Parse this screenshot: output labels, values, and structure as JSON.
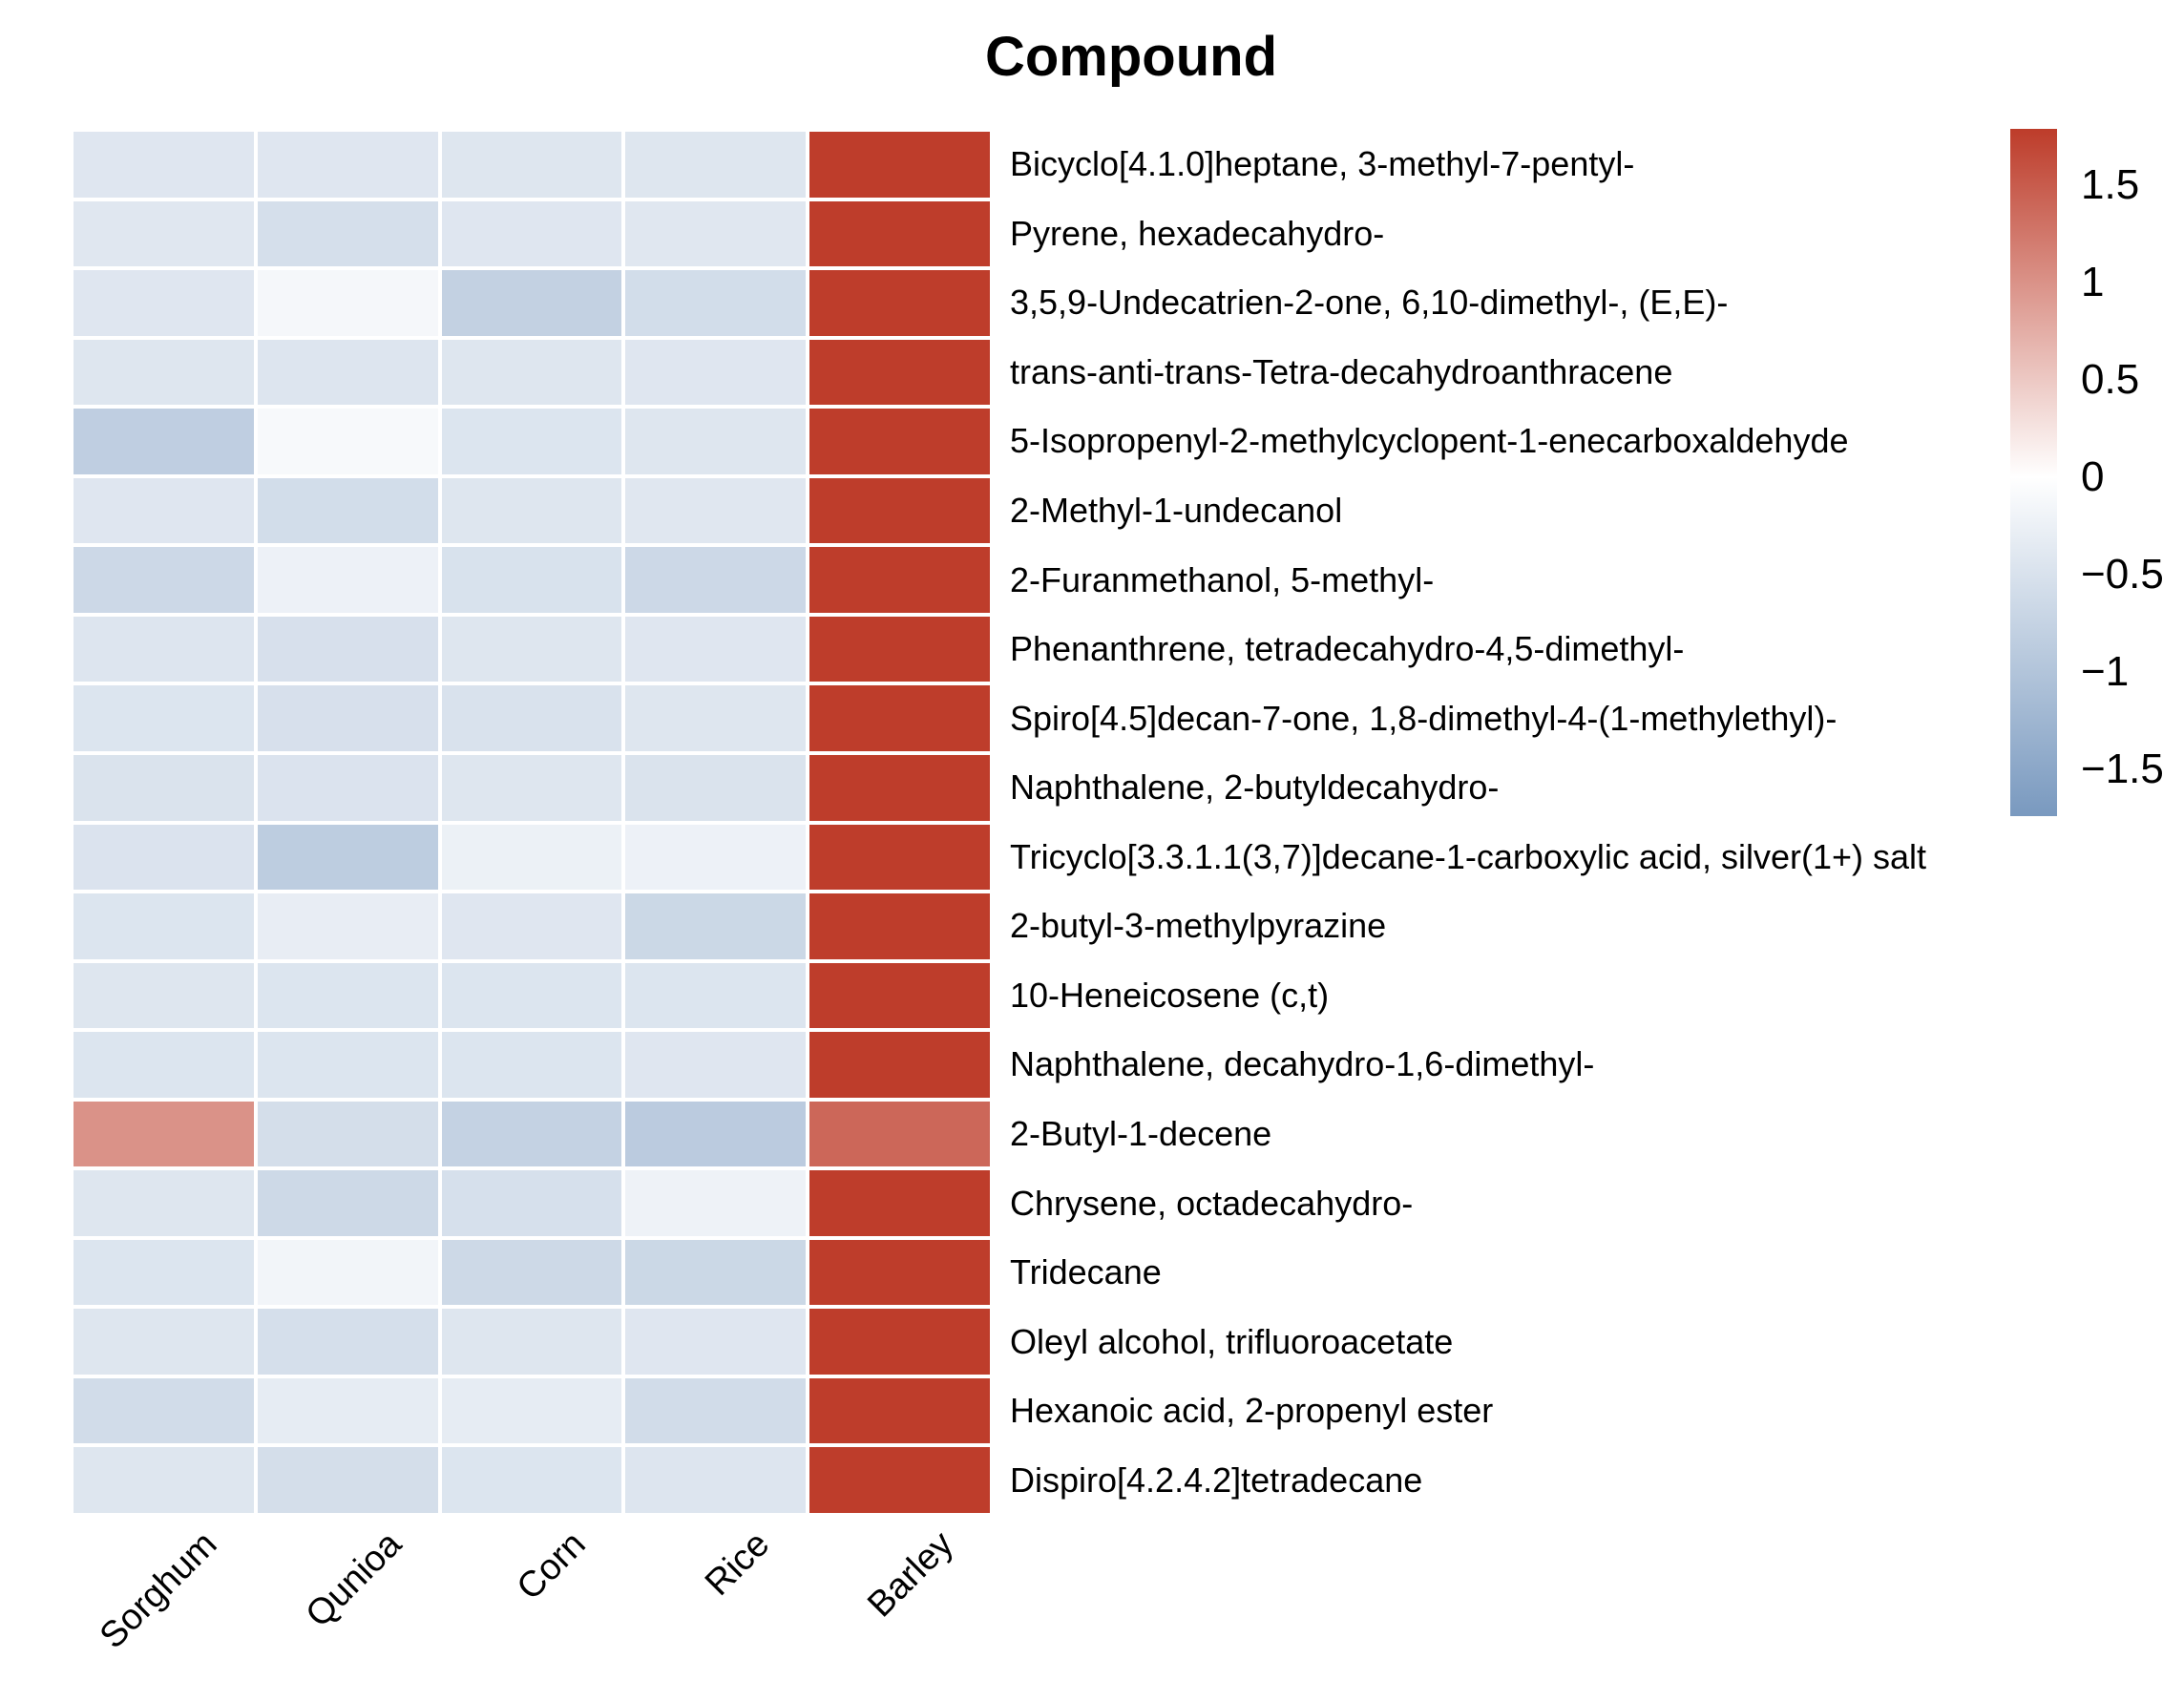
{
  "chart_data": {
    "type": "heatmap",
    "title": "Compound",
    "legend_position": "right",
    "columns": [
      "Sorghum",
      "Qunioa",
      "Corn",
      "Rice",
      "Barley"
    ],
    "rows": [
      {
        "name": "Bicyclo[4.1.0]heptane, 3-methyl-7-pentyl-",
        "values": [
          -0.42,
          -0.42,
          -0.43,
          -0.43,
          1.78
        ]
      },
      {
        "name": "Pyrene, hexadecahydro-",
        "values": [
          -0.4,
          -0.55,
          -0.42,
          -0.4,
          1.78
        ]
      },
      {
        "name": "3,5,9-Undecatrien-2-one, 6,10-dimethyl-, (E,E)-",
        "values": [
          -0.42,
          -0.13,
          -0.78,
          -0.58,
          1.78
        ]
      },
      {
        "name": "trans-anti-trans-Tetra-decahydroanthracene",
        "values": [
          -0.43,
          -0.44,
          -0.43,
          -0.42,
          1.78
        ]
      },
      {
        "name": "5-Isopropenyl-2-methylcyclopent-1-enecarboxaldehyde",
        "values": [
          -0.83,
          -0.11,
          -0.45,
          -0.43,
          1.78
        ]
      },
      {
        "name": "2-Methyl-1-undecanol",
        "values": [
          -0.42,
          -0.58,
          -0.43,
          -0.4,
          1.78
        ]
      },
      {
        "name": "2-Furanmethanol, 5-methyl-",
        "values": [
          -0.66,
          -0.23,
          -0.5,
          -0.66,
          1.78
        ]
      },
      {
        "name": "Phenanthrene, tetradecahydro-4,5-dimethyl-",
        "values": [
          -0.44,
          -0.52,
          -0.43,
          -0.42,
          1.78
        ]
      },
      {
        "name": "Spiro[4.5]decan-7-one, 1,8-dimethyl-4-(1-methylethyl)-",
        "values": [
          -0.45,
          -0.52,
          -0.49,
          -0.43,
          1.78
        ]
      },
      {
        "name": "Naphthalene, 2-butyldecahydro-",
        "values": [
          -0.48,
          -0.47,
          -0.43,
          -0.48,
          1.78
        ]
      },
      {
        "name": "Tricyclo[3.3.1.1(3,7)]decane-1-carboxylic acid, silver(1+) salt",
        "values": [
          -0.47,
          -0.85,
          -0.24,
          -0.23,
          1.78
        ]
      },
      {
        "name": "2-butyl-3-methylpyrazine",
        "values": [
          -0.45,
          -0.3,
          -0.42,
          -0.67,
          1.78
        ]
      },
      {
        "name": "10-Heneicosene (c,t)",
        "values": [
          -0.43,
          -0.45,
          -0.45,
          -0.45,
          1.78
        ]
      },
      {
        "name": "Naphthalene, decahydro-1,6-dimethyl-",
        "values": [
          -0.45,
          -0.45,
          -0.45,
          -0.42,
          1.78
        ]
      },
      {
        "name": "2-Butyl-1-decene",
        "values": [
          1.0,
          -0.56,
          -0.77,
          -0.88,
          1.4
        ]
      },
      {
        "name": "Chrysene, octadecahydro-",
        "values": [
          -0.43,
          -0.65,
          -0.53,
          -0.22,
          1.78
        ]
      },
      {
        "name": "Tridecane",
        "values": [
          -0.45,
          -0.17,
          -0.65,
          -0.67,
          1.78
        ]
      },
      {
        "name": "Oleyl alcohol, trifluoroacetate",
        "values": [
          -0.43,
          -0.55,
          -0.43,
          -0.42,
          1.78
        ]
      },
      {
        "name": "Hexanoic acid, 2-propenyl ester",
        "values": [
          -0.6,
          -0.33,
          -0.32,
          -0.59,
          1.78
        ]
      },
      {
        "name": "Dispiro[4.2.4.2]tetradecane",
        "values": [
          -0.43,
          -0.56,
          -0.45,
          -0.44,
          1.78
        ]
      }
    ],
    "colorbar": {
      "vmin": -1.8,
      "vmax": 1.8,
      "color_positive_end": "#bd3b29",
      "color_zero": "#ffffff",
      "color_negative_end": "#7495bd",
      "top_value": 1.79,
      "bottom_value": -1.74,
      "ticks": [
        {
          "label": "1.5",
          "value": 1.5
        },
        {
          "label": "1",
          "value": 1.0
        },
        {
          "label": "0.5",
          "value": 0.5
        },
        {
          "label": "0",
          "value": 0.0
        },
        {
          "label": "−0.5",
          "value": -0.5
        },
        {
          "label": "−1",
          "value": -1.0
        },
        {
          "label": "−1.5",
          "value": -1.5
        }
      ]
    }
  }
}
